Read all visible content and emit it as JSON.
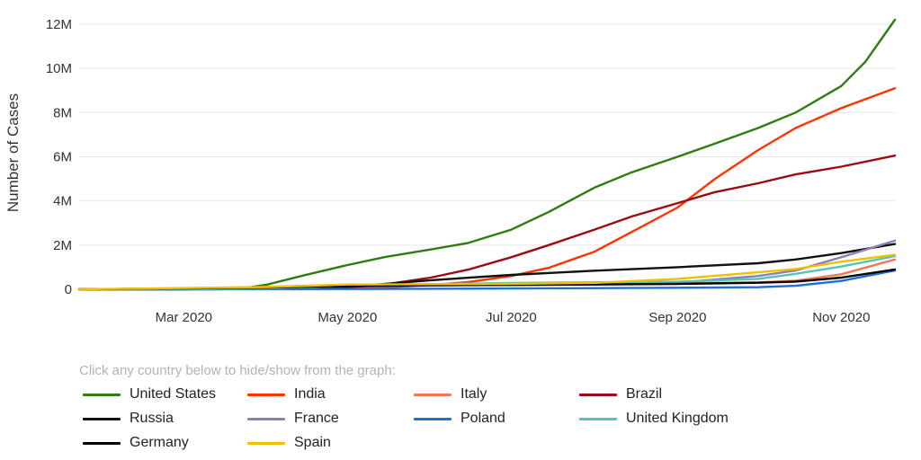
{
  "chart_data": {
    "type": "line",
    "ylabel": "Number of Cases",
    "xlabel": "",
    "ylim": [
      0,
      12200000
    ],
    "xlim": [
      "2020-01-22",
      "2020-11-21"
    ],
    "y_ticks": [
      {
        "value": 0,
        "label": "0"
      },
      {
        "value": 2000000,
        "label": "2M"
      },
      {
        "value": 4000000,
        "label": "4M"
      },
      {
        "value": 6000000,
        "label": "6M"
      },
      {
        "value": 8000000,
        "label": "8M"
      },
      {
        "value": 10000000,
        "label": "10M"
      },
      {
        "value": 12000000,
        "label": "12M"
      }
    ],
    "x_ticks": [
      {
        "value": "2020-03-01",
        "label": "Mar 2020"
      },
      {
        "value": "2020-05-01",
        "label": "May 2020"
      },
      {
        "value": "2020-07-01",
        "label": "Jul 2020"
      },
      {
        "value": "2020-09-01",
        "label": "Sep 2020"
      },
      {
        "value": "2020-11-01",
        "label": "Nov 2020"
      }
    ],
    "grid": true,
    "legend_position": "bottom",
    "series": [
      {
        "name": "United States",
        "color": "#2e7d12",
        "points": [
          [
            "2020-01-22",
            0
          ],
          [
            "2020-03-15",
            3500
          ],
          [
            "2020-03-23",
            45000
          ],
          [
            "2020-04-01",
            210000
          ],
          [
            "2020-04-15",
            640000
          ],
          [
            "2020-05-01",
            1100000
          ],
          [
            "2020-05-15",
            1460000
          ],
          [
            "2020-06-01",
            1800000
          ],
          [
            "2020-06-15",
            2100000
          ],
          [
            "2020-07-01",
            2700000
          ],
          [
            "2020-07-15",
            3500000
          ],
          [
            "2020-08-01",
            4600000
          ],
          [
            "2020-08-15",
            5300000
          ],
          [
            "2020-09-01",
            6000000
          ],
          [
            "2020-09-15",
            6600000
          ],
          [
            "2020-10-01",
            7300000
          ],
          [
            "2020-10-15",
            8000000
          ],
          [
            "2020-11-01",
            9200000
          ],
          [
            "2020-11-10",
            10300000
          ],
          [
            "2020-11-21",
            12200000
          ]
        ]
      },
      {
        "name": "India",
        "color": "#ff3300",
        "points": [
          [
            "2020-01-22",
            0
          ],
          [
            "2020-04-15",
            12000
          ],
          [
            "2020-05-15",
            85000
          ],
          [
            "2020-06-01",
            190000
          ],
          [
            "2020-06-15",
            330000
          ],
          [
            "2020-07-01",
            600000
          ],
          [
            "2020-07-15",
            970000
          ],
          [
            "2020-08-01",
            1700000
          ],
          [
            "2020-08-15",
            2600000
          ],
          [
            "2020-09-01",
            3700000
          ],
          [
            "2020-09-15",
            5000000
          ],
          [
            "2020-10-01",
            6300000
          ],
          [
            "2020-10-15",
            7300000
          ],
          [
            "2020-11-01",
            8200000
          ],
          [
            "2020-11-21",
            9100000
          ]
        ]
      },
      {
        "name": "Italy",
        "color": "#f27755",
        "points": [
          [
            "2020-01-22",
            0
          ],
          [
            "2020-03-01",
            1700
          ],
          [
            "2020-04-01",
            110000
          ],
          [
            "2020-05-01",
            205000
          ],
          [
            "2020-07-01",
            241000
          ],
          [
            "2020-09-01",
            270000
          ],
          [
            "2020-10-01",
            315000
          ],
          [
            "2020-10-15",
            390000
          ],
          [
            "2020-11-01",
            680000
          ],
          [
            "2020-11-21",
            1350000
          ]
        ]
      },
      {
        "name": "Brazil",
        "color": "#9b0b12",
        "points": [
          [
            "2020-01-22",
            0
          ],
          [
            "2020-04-01",
            6800
          ],
          [
            "2020-05-01",
            90000
          ],
          [
            "2020-05-15",
            220000
          ],
          [
            "2020-06-01",
            530000
          ],
          [
            "2020-06-15",
            890000
          ],
          [
            "2020-07-01",
            1450000
          ],
          [
            "2020-07-15",
            2000000
          ],
          [
            "2020-08-01",
            2700000
          ],
          [
            "2020-08-15",
            3300000
          ],
          [
            "2020-09-01",
            3900000
          ],
          [
            "2020-09-15",
            4400000
          ],
          [
            "2020-10-01",
            4800000
          ],
          [
            "2020-10-15",
            5200000
          ],
          [
            "2020-11-01",
            5550000
          ],
          [
            "2020-11-21",
            6050000
          ]
        ]
      },
      {
        "name": "Russia",
        "color": "#111111",
        "points": [
          [
            "2020-01-22",
            0
          ],
          [
            "2020-04-01",
            3000
          ],
          [
            "2020-05-01",
            110000
          ],
          [
            "2020-06-01",
            410000
          ],
          [
            "2020-07-01",
            650000
          ],
          [
            "2020-08-01",
            840000
          ],
          [
            "2020-09-01",
            1000000
          ],
          [
            "2020-10-01",
            1180000
          ],
          [
            "2020-10-15",
            1350000
          ],
          [
            "2020-11-01",
            1640000
          ],
          [
            "2020-11-21",
            2050000
          ]
        ]
      },
      {
        "name": "France",
        "color": "#8c7fb6",
        "points": [
          [
            "2020-01-22",
            0
          ],
          [
            "2020-04-01",
            56000
          ],
          [
            "2020-05-01",
            168000
          ],
          [
            "2020-07-01",
            202000
          ],
          [
            "2020-08-01",
            225000
          ],
          [
            "2020-09-01",
            300000
          ],
          [
            "2020-10-01",
            600000
          ],
          [
            "2020-10-15",
            850000
          ],
          [
            "2020-11-01",
            1450000
          ],
          [
            "2020-11-21",
            2200000
          ]
        ]
      },
      {
        "name": "Poland",
        "color": "#1f6fd6",
        "points": [
          [
            "2020-01-22",
            0
          ],
          [
            "2020-05-01",
            13000
          ],
          [
            "2020-07-01",
            35000
          ],
          [
            "2020-09-01",
            68000
          ],
          [
            "2020-10-01",
            93000
          ],
          [
            "2020-10-15",
            160000
          ],
          [
            "2020-11-01",
            380000
          ],
          [
            "2020-11-21",
            850000
          ]
        ]
      },
      {
        "name": "United Kingdom",
        "color": "#53c4b5",
        "points": [
          [
            "2020-01-22",
            0
          ],
          [
            "2020-04-01",
            30000
          ],
          [
            "2020-05-01",
            180000
          ],
          [
            "2020-07-01",
            285000
          ],
          [
            "2020-09-01",
            340000
          ],
          [
            "2020-10-01",
            470000
          ],
          [
            "2020-10-15",
            700000
          ],
          [
            "2020-11-01",
            1030000
          ],
          [
            "2020-11-21",
            1500000
          ]
        ]
      },
      {
        "name": "Germany",
        "color": "#000000",
        "points": [
          [
            "2020-01-22",
            0
          ],
          [
            "2020-04-01",
            73000
          ],
          [
            "2020-05-01",
            163000
          ],
          [
            "2020-07-01",
            196000
          ],
          [
            "2020-09-01",
            245000
          ],
          [
            "2020-10-01",
            295000
          ],
          [
            "2020-10-15",
            350000
          ],
          [
            "2020-11-01",
            530000
          ],
          [
            "2020-11-21",
            900000
          ]
        ]
      },
      {
        "name": "Spain",
        "color": "#f3bd00",
        "points": [
          [
            "2020-01-22",
            0
          ],
          [
            "2020-04-01",
            100000
          ],
          [
            "2020-05-01",
            215000
          ],
          [
            "2020-07-01",
            250000
          ],
          [
            "2020-08-01",
            290000
          ],
          [
            "2020-09-01",
            470000
          ],
          [
            "2020-10-01",
            770000
          ],
          [
            "2020-10-15",
            920000
          ],
          [
            "2020-11-01",
            1250000
          ],
          [
            "2020-11-21",
            1560000
          ]
        ]
      }
    ]
  },
  "legend": {
    "hint": "Click any country below to hide/show from the graph:"
  }
}
